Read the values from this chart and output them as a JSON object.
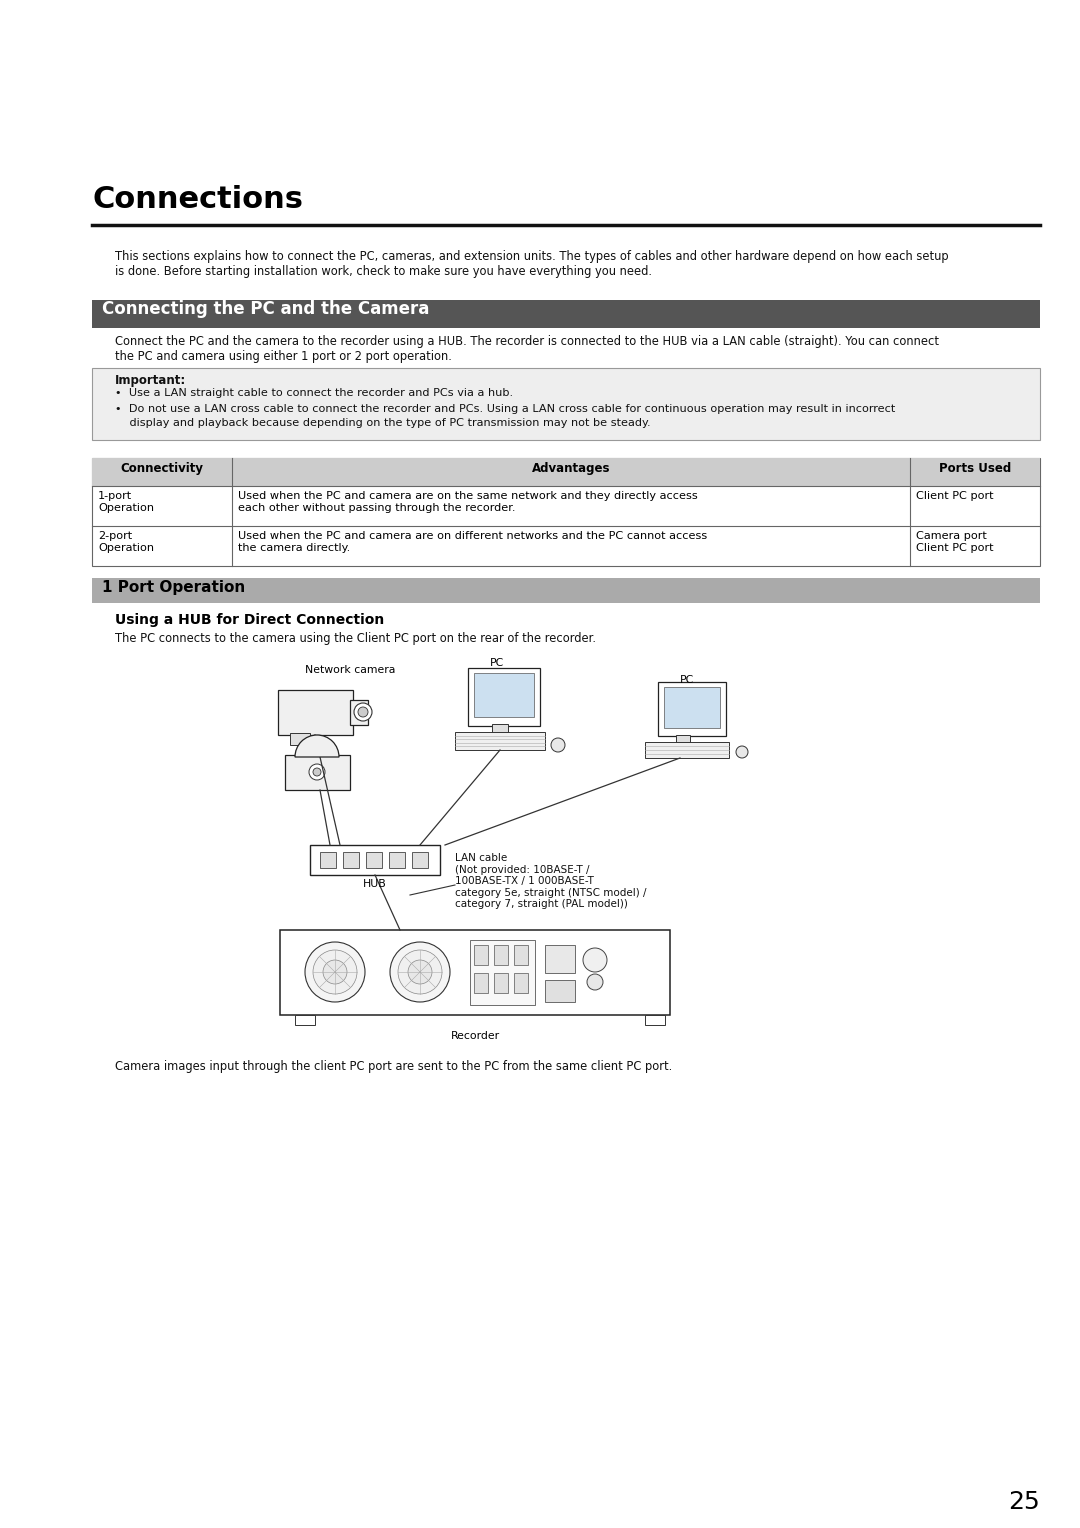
{
  "title": "Connections",
  "bg_color": "#ffffff",
  "intro_text": "This sections explains how to connect the PC, cameras, and extension units. The types of cables and other hardware depend on how each setup\nis done. Before starting installation work, check to make sure you have everything you need.",
  "section1_title": "Connecting the PC and the Camera",
  "section1_bg": "#555555",
  "section1_text1": "Connect the PC and the camera to the recorder using a HUB. The recorder is connected to the HUB via a LAN cable (straight). You can connect",
  "section1_text2": "the PC and camera using either 1 port or 2 port operation.",
  "important_label": "Important:",
  "important_bullet1": "•  Use a LAN straight cable to connect the recorder and PCs via a hub.",
  "important_bullet2": "•  Do not use a LAN cross cable to connect the recorder and PCs. Using a LAN cross cable for continuous operation may result in incorrect",
  "important_bullet2b": "    display and playback because depending on the type of PC transmission may not be steady.",
  "table_col1": "Connectivity",
  "table_col2": "Advantages",
  "table_col3": "Ports Used",
  "table_row1_c1a": "1-port",
  "table_row1_c1b": "Operation",
  "table_row1_c2a": "Used when the PC and camera are on the same network and they directly access",
  "table_row1_c2b": "each other without passing through the recorder.",
  "table_row1_c3": "Client PC port",
  "table_row2_c1a": "2-port",
  "table_row2_c1b": "Operation",
  "table_row2_c2a": "Used when the PC and camera are on different networks and the PC cannot access",
  "table_row2_c2b": "the camera directly.",
  "table_row2_c3a": "Camera port",
  "table_row2_c3b": "Client PC port",
  "section2_title": "1 Port Operation",
  "section2_bg": "#aaaaaa",
  "subsection_title": "Using a HUB for Direct Connection",
  "subsection_text": "The PC connects to the camera using the Client PC port on the rear of the recorder.",
  "label_network_camera": "Network camera",
  "label_pc1": "PC",
  "label_pc2": "PC",
  "label_hub": "HUB",
  "label_lan": "LAN cable\n(Not provided: 10BASE-T /\n100BASE-TX / 1 000BASE-T\ncategory 5e, straight (NTSC model) /\ncategory 7, straight (PAL model))",
  "label_recorder": "Recorder",
  "footer_text": "Camera images input through the client PC port are sent to the PC from the same client PC port.",
  "page_number": "25",
  "ml": 0.085,
  "mr": 0.965,
  "cl": 0.105
}
